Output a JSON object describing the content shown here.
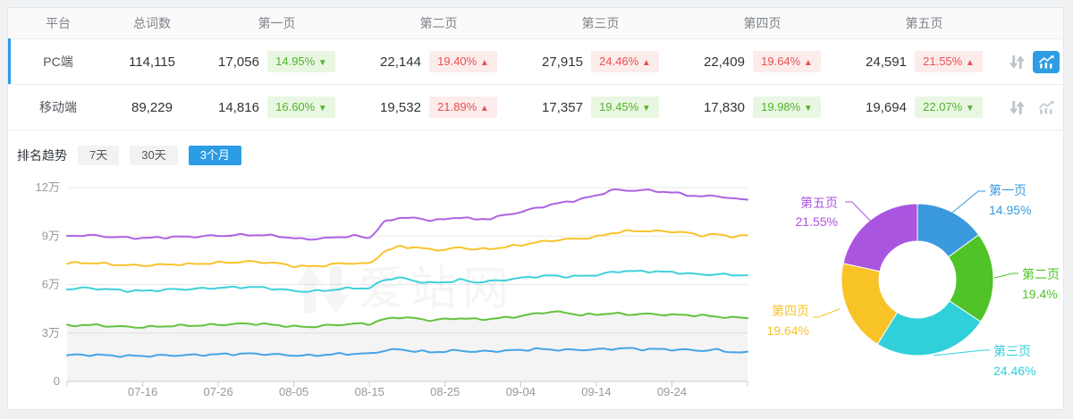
{
  "table": {
    "headers": [
      "平台",
      "总词数",
      "第一页",
      "第二页",
      "第三页",
      "第四页",
      "第五页"
    ],
    "rows": [
      {
        "platform": "PC端",
        "total": "114,115",
        "selected": true,
        "pages": [
          {
            "value": "17,056",
            "pct": "14.95%",
            "dir": "down"
          },
          {
            "value": "22,144",
            "pct": "19.40%",
            "dir": "up"
          },
          {
            "value": "27,915",
            "pct": "24.46%",
            "dir": "up"
          },
          {
            "value": "22,409",
            "pct": "19.64%",
            "dir": "up"
          },
          {
            "value": "24,591",
            "pct": "21.55%",
            "dir": "up"
          }
        ]
      },
      {
        "platform": "移动端",
        "total": "89,229",
        "selected": false,
        "pages": [
          {
            "value": "14,816",
            "pct": "16.60%",
            "dir": "down"
          },
          {
            "value": "19,532",
            "pct": "21.89%",
            "dir": "up"
          },
          {
            "value": "17,357",
            "pct": "19.45%",
            "dir": "down"
          },
          {
            "value": "17,830",
            "pct": "19.98%",
            "dir": "down"
          },
          {
            "value": "19,694",
            "pct": "22.07%",
            "dir": "down"
          }
        ]
      }
    ],
    "row_icons": [
      "sort-arrows",
      "trend-chart"
    ]
  },
  "colors": {
    "accent": "#2b9ce5",
    "badge_up_text": "#e9504e",
    "badge_up_bg": "#fdecec",
    "badge_down_text": "#52b42c",
    "badge_down_bg": "#e9f7e2"
  },
  "trend": {
    "title": "排名趋势",
    "tabs": [
      {
        "label": "7天",
        "active": false
      },
      {
        "label": "30天",
        "active": false
      },
      {
        "label": "3个月",
        "active": true
      }
    ]
  },
  "watermark": {
    "text": "爱站网"
  },
  "chart_data": [
    {
      "type": "line",
      "x_labels": [
        "07-16",
        "07-26",
        "08-05",
        "08-15",
        "08-25",
        "09-04",
        "09-14",
        "09-24"
      ],
      "x_range_days": 90,
      "first_label_day": 10,
      "label_step_days": 10,
      "y_ticks": [
        {
          "label": "0",
          "value": 0
        },
        {
          "label": "3万",
          "value": 3
        },
        {
          "label": "6万",
          "value": 6
        },
        {
          "label": "9万",
          "value": 9
        },
        {
          "label": "12万",
          "value": 12
        }
      ],
      "y_unit": "万",
      "ylim": [
        0,
        12
      ],
      "grid": true,
      "series": [
        {
          "name": "series-blue",
          "color": "#44a4e6",
          "values": [
            1.62,
            1.65,
            1.64,
            1.6,
            1.58,
            1.58,
            1.6,
            1.62,
            1.63,
            1.65,
            1.68,
            1.7,
            1.72,
            1.7,
            1.66,
            1.62,
            1.6,
            1.65,
            1.7,
            1.72,
            1.72,
            1.92,
            1.98,
            1.88,
            1.82,
            1.86,
            1.92,
            1.84,
            1.88,
            1.9,
            1.95,
            2.0,
            1.98,
            1.95,
            1.96,
            1.98,
            2.02,
            2.05,
            2.0,
            2.0,
            1.98,
            1.95,
            1.92,
            1.95,
            1.82,
            1.78
          ]
        },
        {
          "name": "series-green",
          "color": "#64c23c",
          "area": "#f2f2f2",
          "values": [
            3.45,
            3.5,
            3.48,
            3.42,
            3.38,
            3.36,
            3.4,
            3.45,
            3.46,
            3.48,
            3.52,
            3.55,
            3.58,
            3.55,
            3.48,
            3.4,
            3.38,
            3.45,
            3.52,
            3.56,
            3.58,
            3.85,
            3.98,
            3.9,
            3.8,
            3.85,
            3.92,
            3.85,
            3.88,
            3.95,
            4.05,
            4.2,
            4.32,
            4.25,
            4.12,
            4.15,
            4.22,
            4.15,
            4.18,
            4.16,
            4.12,
            4.12,
            4.08,
            4.02,
            3.95,
            3.95
          ]
        },
        {
          "name": "series-cyan",
          "color": "#3fd0da",
          "values": [
            5.72,
            5.78,
            5.75,
            5.68,
            5.62,
            5.6,
            5.65,
            5.7,
            5.72,
            5.75,
            5.8,
            5.82,
            5.85,
            5.8,
            5.72,
            5.6,
            5.58,
            5.62,
            5.72,
            5.78,
            5.78,
            6.3,
            6.42,
            6.22,
            6.1,
            6.15,
            6.28,
            6.15,
            6.2,
            6.3,
            6.4,
            6.5,
            6.55,
            6.5,
            6.52,
            6.6,
            6.75,
            6.85,
            6.8,
            6.82,
            6.75,
            6.7,
            6.6,
            6.65,
            6.58,
            6.6
          ]
        },
        {
          "name": "series-yellow",
          "color": "#f9c32d",
          "values": [
            7.3,
            7.35,
            7.32,
            7.25,
            7.2,
            7.18,
            7.22,
            7.25,
            7.25,
            7.3,
            7.35,
            7.38,
            7.42,
            7.38,
            7.3,
            7.15,
            7.12,
            7.18,
            7.3,
            7.32,
            7.3,
            8.05,
            8.35,
            8.3,
            8.18,
            8.15,
            8.3,
            8.18,
            8.22,
            8.32,
            8.45,
            8.6,
            8.72,
            8.8,
            8.85,
            8.95,
            9.18,
            9.3,
            9.32,
            9.3,
            9.28,
            9.2,
            9.05,
            9.1,
            8.98,
            9.02
          ]
        },
        {
          "name": "series-purple",
          "color": "#ae62e2",
          "values": [
            9.0,
            9.05,
            9.02,
            8.95,
            8.9,
            8.88,
            8.9,
            8.95,
            8.95,
            9.0,
            9.02,
            9.05,
            9.08,
            9.05,
            9.0,
            8.85,
            8.82,
            8.85,
            8.95,
            9.0,
            8.92,
            9.85,
            10.15,
            10.1,
            10.0,
            10.02,
            10.18,
            10.02,
            10.1,
            10.3,
            10.5,
            10.72,
            10.95,
            11.1,
            11.3,
            11.5,
            11.85,
            11.82,
            11.85,
            11.78,
            11.7,
            11.55,
            11.45,
            11.5,
            11.3,
            11.28
          ]
        }
      ]
    },
    {
      "type": "donut",
      "segments": [
        {
          "label": "第一页",
          "pct": 14.95,
          "pct_label": "14.95%",
          "color": "#3b99dd"
        },
        {
          "label": "第二页",
          "pct": 19.4,
          "pct_label": "19.4%",
          "color": "#50c329"
        },
        {
          "label": "第三页",
          "pct": 24.46,
          "pct_label": "24.46%",
          "color": "#2fd0d9"
        },
        {
          "label": "第四页",
          "pct": 19.64,
          "pct_label": "19.64%",
          "color": "#f8c327"
        },
        {
          "label": "第五页",
          "pct": 21.55,
          "pct_label": "21.55%",
          "color": "#aa55e0"
        }
      ]
    }
  ]
}
